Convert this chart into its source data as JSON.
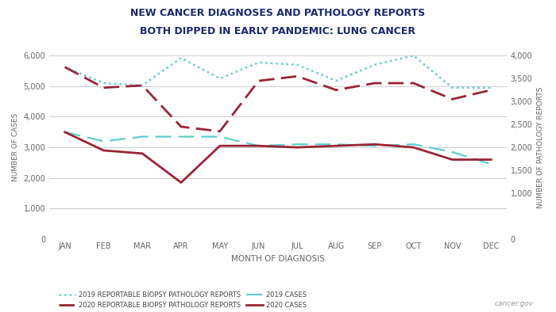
{
  "title_line1": "NEW CANCER DIAGNOSES AND PATHOLOGY REPORTS",
  "title_line2": "BOTH DIPPED IN EARLY PANDEMIC: LUNG CANCER",
  "months": [
    "JAN",
    "FEB",
    "MAR",
    "APR",
    "MAY",
    "JUN",
    "JUL",
    "AUG",
    "SEP",
    "OCT",
    "NOV",
    "DEC"
  ],
  "cases_2019": [
    3500,
    3200,
    3350,
    3350,
    3350,
    3050,
    3100,
    3100,
    3050,
    3100,
    2850,
    2450
  ],
  "cases_2020": [
    3500,
    2900,
    2800,
    1850,
    3050,
    3050,
    3000,
    3050,
    3100,
    3000,
    2600,
    2600
  ],
  "path_2019": [
    3750,
    3400,
    3350,
    3950,
    3500,
    3850,
    3800,
    3450,
    3800,
    4000,
    3300,
    3300
  ],
  "path_2020": [
    3750,
    3300,
    3350,
    2450,
    2350,
    3450,
    3550,
    3250,
    3400,
    3400,
    3050,
    3250
  ],
  "left_ylim": [
    0,
    6000
  ],
  "right_ylim": [
    0,
    4000
  ],
  "left_yticks": [
    0,
    1000,
    2000,
    3000,
    4000,
    5000,
    6000
  ],
  "right_yticks": [
    0,
    1000,
    1500,
    2000,
    2500,
    3000,
    3500,
    4000
  ],
  "ylabel_left": "NUMBER OF CASES",
  "ylabel_right": "NUMBER OF PATHOLOGY REPORTS",
  "xlabel": "MONTH OF DIAGNOSIS",
  "color_teal": "#5ecece",
  "color_dark_red": "#9b2335",
  "background_color": "#ffffff",
  "grid_color": "#cccccc",
  "watermark": "cancer.gov",
  "legend_labels": [
    "2019 REPORTABLE BIOPSY PATHOLOGY REPORTS",
    "2020 REPORTABLE BIOPSY PATHOLOGY REPORTS",
    "2019 CASES",
    "2020 CASES"
  ],
  "title_color": "#1a2a6e"
}
